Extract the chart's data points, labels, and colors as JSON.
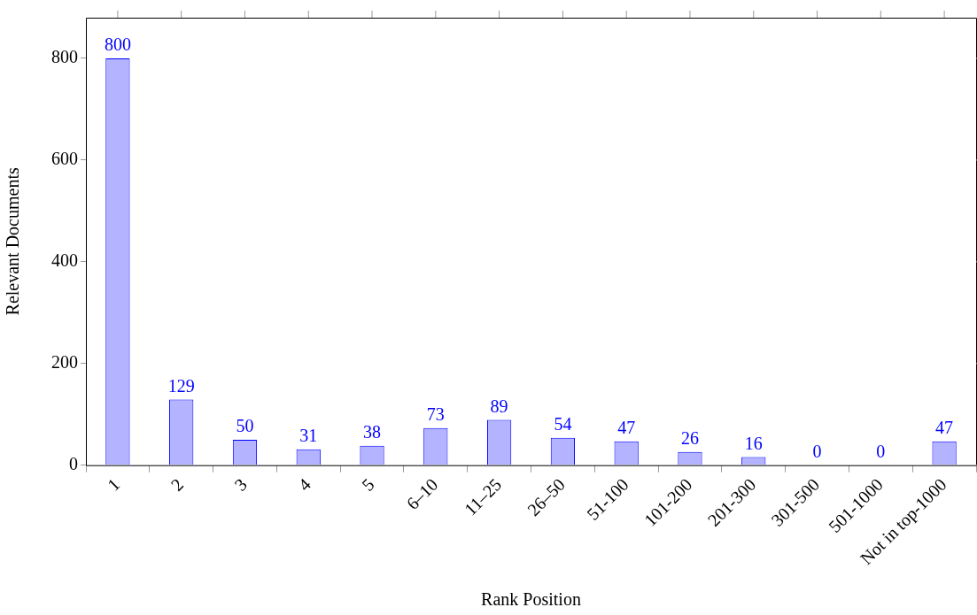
{
  "chart_data": {
    "type": "bar",
    "xlabel": "Rank Position",
    "ylabel": "Relevant Documents",
    "categories": [
      "1",
      "2",
      "3",
      "4",
      "5",
      "6–10",
      "11–25",
      "26–50",
      "51-100",
      "101-200",
      "201-300",
      "301-500",
      "501-1000",
      "Not in top-1000"
    ],
    "series": [
      {
        "color": "#b3b3ff",
        "values": [
          800,
          129,
          50,
          31,
          38,
          73,
          89,
          54,
          47,
          26,
          16,
          0,
          0,
          47
        ]
      }
    ],
    "ylim": [
      0,
      880
    ],
    "yticks": [
      0,
      200,
      400,
      600,
      800
    ],
    "data_labels": true,
    "grid": false,
    "legend": false
  }
}
